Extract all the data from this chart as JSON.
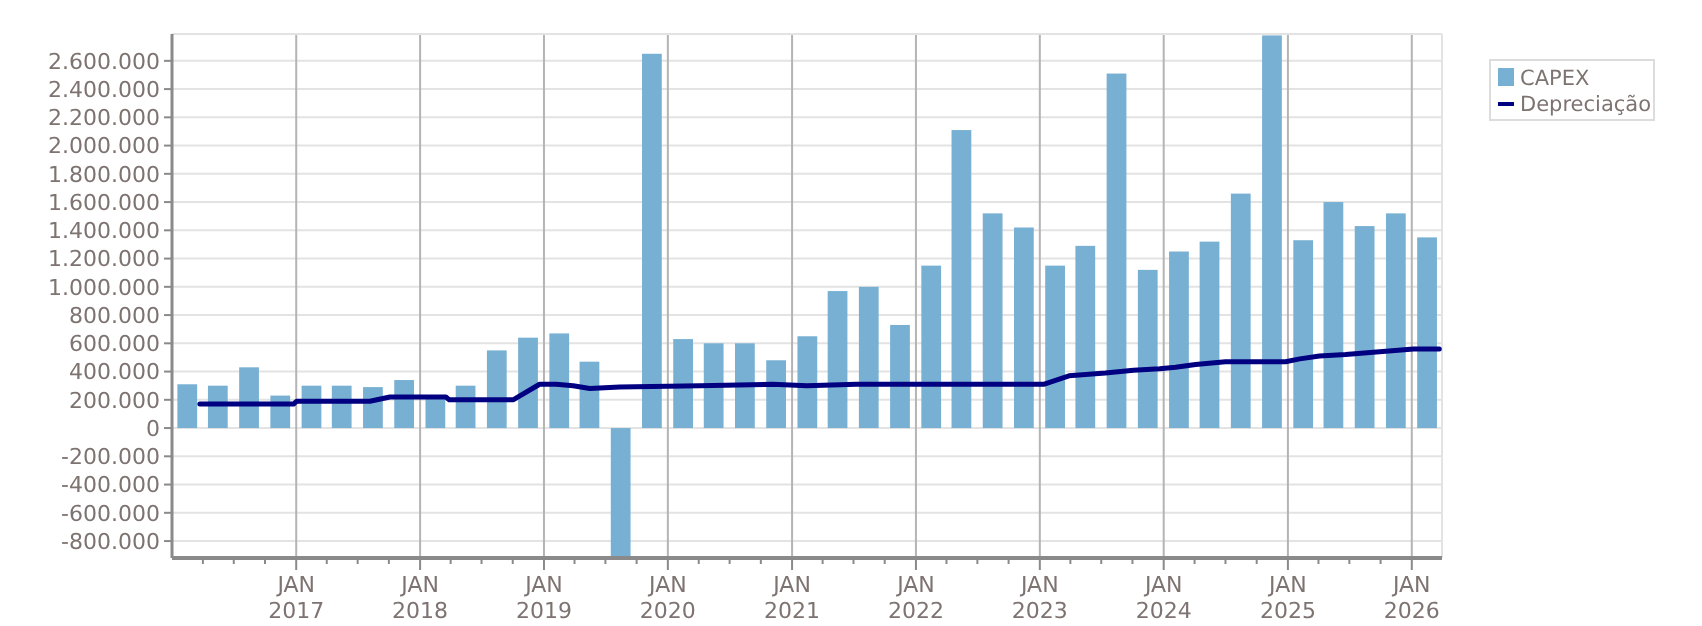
{
  "chart_data": {
    "type": "bar",
    "x": [
      "2016-02-15",
      "2016-05-15",
      "2016-08-15",
      "2016-11-15",
      "2017-02-15",
      "2017-05-15",
      "2017-08-15",
      "2017-11-15",
      "2018-02-15",
      "2018-05-15",
      "2018-08-15",
      "2018-11-15",
      "2019-02-15",
      "2019-05-15",
      "2019-08-15",
      "2019-11-15",
      "2020-02-15",
      "2020-05-15",
      "2020-08-15",
      "2020-11-15",
      "2021-02-15",
      "2021-05-15",
      "2021-08-15",
      "2021-11-15",
      "2022-02-15",
      "2022-05-15",
      "2022-08-15",
      "2022-11-15",
      "2023-02-15",
      "2023-05-15",
      "2023-08-15",
      "2023-11-15",
      "2024-02-15",
      "2024-05-15",
      "2024-08-15",
      "2024-11-15",
      "2025-02-15",
      "2025-05-15",
      "2025-08-15",
      "2025-11-15",
      "2026-02-15"
    ],
    "series": [
      {
        "name": "CAPEX",
        "color": "#78b0d3",
        "values": [
          310000,
          300000,
          430000,
          230000,
          300000,
          300000,
          290000,
          340000,
          220000,
          300000,
          550000,
          640000,
          670000,
          470000,
          -920000,
          2650000,
          630000,
          600000,
          600000,
          480000,
          650000,
          970000,
          1000000,
          730000,
          1150000,
          2110000,
          1520000,
          1420000,
          1150000,
          1290000,
          2510000,
          1120000,
          1250000,
          1320000,
          1660000,
          2780000,
          1330000,
          1600000,
          1430000,
          1520000,
          1350000
        ]
      },
      {
        "name": "Depreciação",
        "type": "line",
        "color": "#000080",
        "x": [
          "2016-03-23",
          "2016-12-24",
          "2017-01-02",
          "2017-08-06",
          "2017-10-04",
          "2018-03-18",
          "2018-03-28",
          "2018-10-02",
          "2018-12-19",
          "2019-02-06",
          "2019-03-28",
          "2019-05-16",
          "2019-08-12",
          "2020-04-04",
          "2020-11-06",
          "2021-02-13",
          "2021-07-09",
          "2023-01-12",
          "2023-03-28",
          "2023-07-13",
          "2023-10-04",
          "2023-12-20",
          "2024-02-05",
          "2024-04-04",
          "2024-07-01",
          "2024-12-25",
          "2025-02-05",
          "2025-04-04",
          "2025-06-20",
          "2025-09-28",
          "2026-01-06",
          "2026-03-23"
        ],
        "values": [
          170000,
          170000,
          190000,
          190000,
          220000,
          220000,
          200000,
          200000,
          310000,
          310000,
          300000,
          280000,
          290000,
          300000,
          310000,
          300000,
          310000,
          310000,
          370000,
          390000,
          410000,
          420000,
          430000,
          450000,
          470000,
          470000,
          490000,
          510000,
          520000,
          540000,
          560000,
          560000
        ]
      }
    ],
    "xlim": [
      "2016-01-01",
      "2026-03-31"
    ],
    "xticks": [
      {
        "value": "2016-04-01",
        "label": null
      },
      {
        "value": "2016-07-01",
        "label": null
      },
      {
        "value": "2016-10-01",
        "label": null
      },
      {
        "value": "2017-01-01",
        "label": "JAN 2017"
      },
      {
        "value": "2017-04-01",
        "label": null
      },
      {
        "value": "2017-07-01",
        "label": null
      },
      {
        "value": "2017-10-01",
        "label": null
      },
      {
        "value": "2018-01-01",
        "label": "JAN 2018"
      },
      {
        "value": "2018-04-01",
        "label": null
      },
      {
        "value": "2018-07-01",
        "label": null
      },
      {
        "value": "2018-10-01",
        "label": null
      },
      {
        "value": "2019-01-01",
        "label": "JAN 2019"
      },
      {
        "value": "2019-04-01",
        "label": null
      },
      {
        "value": "2019-07-01",
        "label": null
      },
      {
        "value": "2019-10-01",
        "label": null
      },
      {
        "value": "2020-01-01",
        "label": "JAN 2020"
      },
      {
        "value": "2020-04-01",
        "label": null
      },
      {
        "value": "2020-07-01",
        "label": null
      },
      {
        "value": "2020-10-01",
        "label": null
      },
      {
        "value": "2021-01-01",
        "label": "JAN 2021"
      },
      {
        "value": "2021-04-01",
        "label": null
      },
      {
        "value": "2021-07-01",
        "label": null
      },
      {
        "value": "2021-10-01",
        "label": null
      },
      {
        "value": "2022-01-01",
        "label": "JAN 2022"
      },
      {
        "value": "2022-04-01",
        "label": null
      },
      {
        "value": "2022-07-01",
        "label": null
      },
      {
        "value": "2022-10-01",
        "label": null
      },
      {
        "value": "2023-01-01",
        "label": "JAN 2023"
      },
      {
        "value": "2023-04-01",
        "label": null
      },
      {
        "value": "2023-07-01",
        "label": null
      },
      {
        "value": "2023-10-01",
        "label": null
      },
      {
        "value": "2024-01-01",
        "label": "JAN 2024"
      },
      {
        "value": "2024-04-01",
        "label": null
      },
      {
        "value": "2024-07-01",
        "label": null
      },
      {
        "value": "2024-10-01",
        "label": null
      },
      {
        "value": "2025-01-01",
        "label": "JAN 2025"
      },
      {
        "value": "2025-04-01",
        "label": null
      },
      {
        "value": "2025-07-01",
        "label": null
      },
      {
        "value": "2025-10-01",
        "label": null
      },
      {
        "value": "2026-01-01",
        "label": "JAN 2026"
      }
    ],
    "ylim": [
      -920000,
      2790000
    ],
    "yticks": [
      {
        "value": -800000,
        "label": "-800.000"
      },
      {
        "value": -600000,
        "label": "-600.000"
      },
      {
        "value": -400000,
        "label": "-400.000"
      },
      {
        "value": -200000,
        "label": "-200.000"
      },
      0,
      {
        "value": 200000,
        "label": "200.000"
      },
      {
        "value": 400000,
        "label": "400.000"
      },
      {
        "value": 600000,
        "label": "600.000"
      },
      {
        "value": 800000,
        "label": "800.000"
      },
      {
        "value": 1000000,
        "label": "1.000.000"
      },
      {
        "value": 1200000,
        "label": "1.200.000"
      },
      {
        "value": 1400000,
        "label": "1.400.000"
      },
      {
        "value": 1600000,
        "label": "1.600.000"
      },
      {
        "value": 1800000,
        "label": "1.800.000"
      },
      {
        "value": 2000000,
        "label": "2.000.000"
      },
      {
        "value": 2200000,
        "label": "2.200.000"
      },
      {
        "value": 2400000,
        "label": "2.400.000"
      },
      {
        "value": 2600000,
        "label": "2.600.000"
      }
    ],
    "grid": true,
    "legend": "top right"
  }
}
